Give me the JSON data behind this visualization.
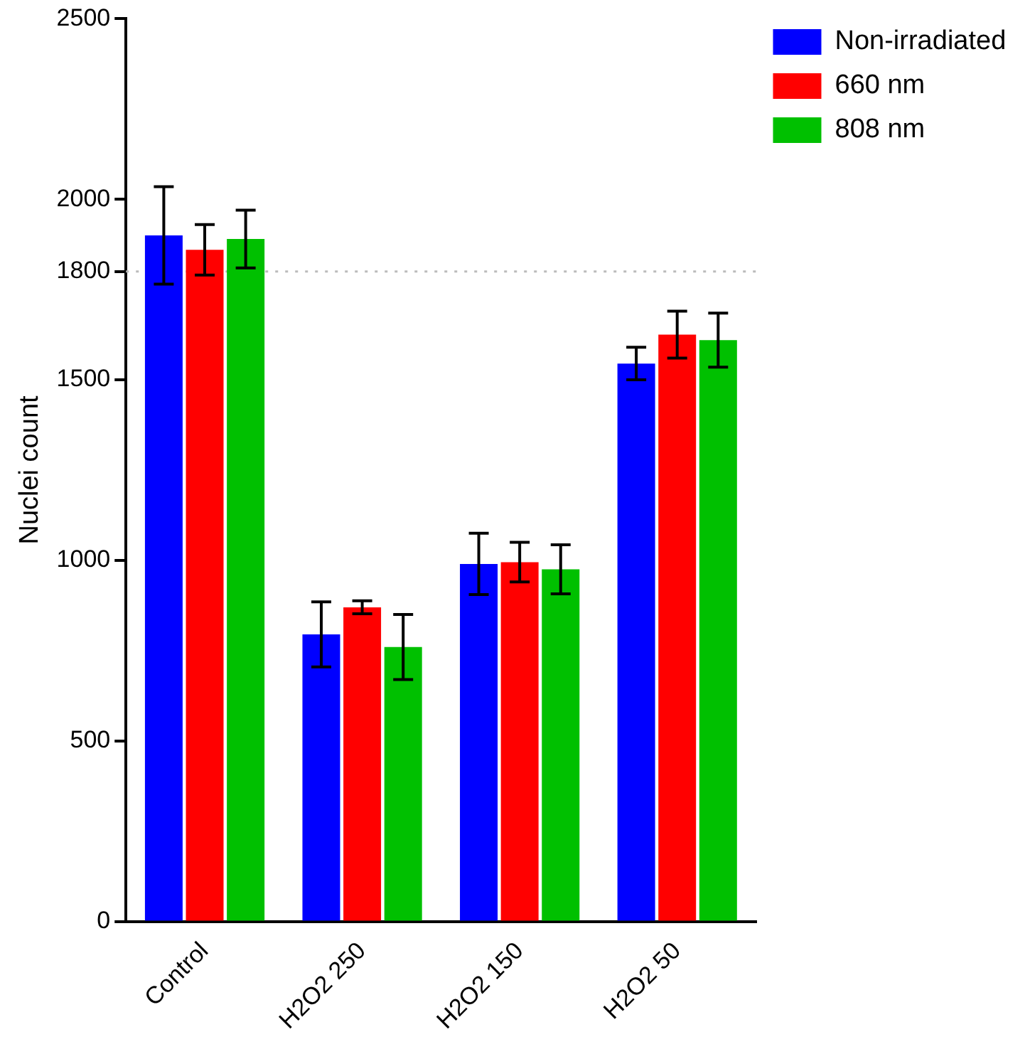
{
  "chart_data": {
    "type": "bar",
    "ylabel": "Nuclei count",
    "categories": [
      "Control",
      "H2O2 250",
      "H2O2 150",
      "H2O2 50"
    ],
    "series": [
      {
        "name": "Non-irradiated",
        "color": "#0000ff",
        "values": [
          1900,
          795,
          990,
          1545
        ],
        "errors": [
          135,
          90,
          85,
          45
        ]
      },
      {
        "name": "660 nm",
        "color": "#ff0000",
        "values": [
          1860,
          870,
          995,
          1625
        ],
        "errors": [
          70,
          18,
          55,
          65
        ]
      },
      {
        "name": "808 nm",
        "color": "#00c000",
        "values": [
          1890,
          760,
          975,
          1610
        ],
        "errors": [
          80,
          90,
          68,
          75
        ]
      }
    ],
    "ylim": [
      0,
      2500
    ],
    "yticks": [
      0,
      500,
      1000,
      1500,
      1800,
      2000,
      2500
    ],
    "ref_lines": [
      {
        "axis": "y",
        "value": 1800,
        "color": "#bbbbbb",
        "line_style": "dotted"
      }
    ],
    "grid": false,
    "legend": "top right"
  }
}
